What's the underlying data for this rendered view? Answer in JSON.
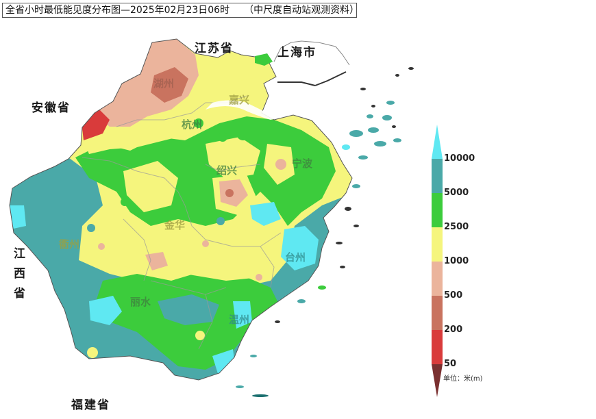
{
  "title": "全省小时最低能见度分布图—2025年02月23日06时　　（中尺度自动站观测资料）",
  "neighbors": {
    "jiangsu": "江苏省",
    "shanghai": "上海市",
    "anhui": "安徽省",
    "jiangxi": [
      "江",
      "西",
      "省"
    ],
    "fujian": "福建省"
  },
  "cities": {
    "huzhou": "湖州",
    "jiaxing": "嘉兴",
    "hangzhou": "杭州",
    "shaoxing": "绍兴",
    "ningbo": "宁波",
    "quzhou": "衢州",
    "jinhua": "金华",
    "taizhou": "台州",
    "lishui": "丽水",
    "wenzhou": "温州"
  },
  "legend": {
    "breaks": [
      "10000",
      "5000",
      "2500",
      "1000",
      "500",
      "200",
      "50"
    ],
    "colors": {
      "gt10000": "#5fe8f2",
      "5000_10000": "#4aa9a8",
      "2500_5000": "#3ccc3c",
      "1000_2500": "#f5f57d",
      "500_1000": "#ebb49c",
      "200_500": "#c9735f",
      "50_200": "#d93b3b",
      "lt50": "#7a3030"
    },
    "unit": "单位：米(m)"
  }
}
